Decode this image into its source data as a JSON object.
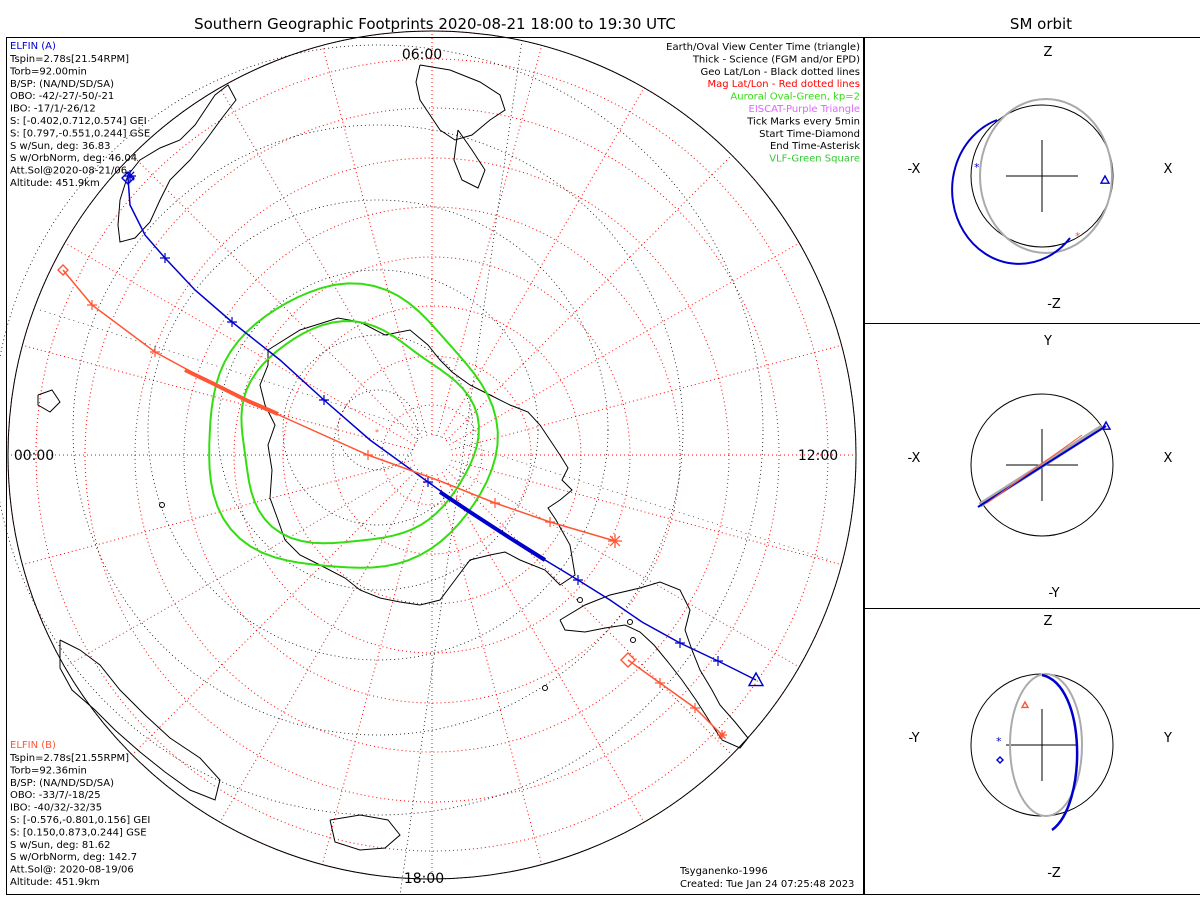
{
  "title": "Southern Geographic Footprints 2020-08-21 18:00 to 19:30 UTC",
  "side_title": "SM orbit",
  "colors": {
    "elfin_a": "#0000cc",
    "elfin_b": "#ff5533",
    "auroral_oval": "#33dd11",
    "eiscat": "#dd66ff",
    "vlf": "#33cc33",
    "geo_grid": "#000000",
    "mag_grid": "#ff0000",
    "orbit_gray": "#aaaaaa"
  },
  "mlt_labels": {
    "top": "06:00",
    "left": "00:00",
    "right": "12:00",
    "bottom": "18:00"
  },
  "legend": [
    {
      "text": "Earth/Oval View Center Time (triangle)",
      "color": "#000000"
    },
    {
      "text": "Thick - Science (FGM and/or EPD)",
      "color": "#000000"
    },
    {
      "text": "Geo Lat/Lon - Black dotted lines",
      "color": "#000000"
    },
    {
      "text": "Mag Lat/Lon - Red dotted lines",
      "color": "#ff0000"
    },
    {
      "text": "Auroral Oval-Green, kp=2",
      "color": "#33dd11"
    },
    {
      "text": "EISCAT-Purple Triangle",
      "color": "#dd66ff"
    },
    {
      "text": "Tick Marks every 5min",
      "color": "#000000"
    },
    {
      "text": "Start Time-Diamond",
      "color": "#000000"
    },
    {
      "text": "End Time-Asterisk",
      "color": "#000000"
    },
    {
      "text": "VLF-Green Square",
      "color": "#33cc33"
    }
  ],
  "elfin_a_info": {
    "name": "ELFIN (A)",
    "lines": [
      "Tspin=2.78s[21.54RPM]",
      "Torb=92.00min",
      "B/SP: (NA/ND/SD/SA)",
      "OBO: -42/-27/-50/-21",
      "IBO: -17/1/-26/12",
      "S: [-0.402,0.712,0.574] GEI",
      "S: [0.797,-0.551,0.244] GSE",
      "S w/Sun, deg: 36.83",
      "S w/OrbNorm, deg: 46.04",
      "Att.Sol@2020-08-21/06",
      "Altitude: 451.9km"
    ]
  },
  "elfin_b_info": {
    "name": "ELFIN (B)",
    "lines": [
      "Tspin=2.78s[21.55RPM]",
      "Torb=92.36min",
      "B/SP: (NA/ND/SD/SA)",
      "OBO: -33/7/-18/25",
      "IBO: -40/32/-32/35",
      "S: [-0.576,-0.801,0.156] GEI",
      "S: [0.150,0.873,0.244] GSE",
      "S w/Sun, deg: 81.62",
      "S w/OrbNorm, deg: 142.7",
      "Att.Sol@: 2020-08-19/06",
      "Altitude: 451.9km"
    ]
  },
  "footer": {
    "model": "Tsyganenko-1996",
    "created": "Created: Tue Jan 24 07:25:48 2023"
  },
  "orbit_panels": [
    {
      "id": "xz",
      "up": "Z",
      "down": "-Z",
      "left": "-X",
      "right": "X"
    },
    {
      "id": "xy",
      "up": "Y",
      "down": "-Y",
      "left": "-X",
      "right": "X"
    },
    {
      "id": "yz",
      "up": "Z",
      "down": "-Z",
      "left": "-Y",
      "right": "Y"
    }
  ],
  "chart_data": {
    "type": "scatter",
    "title": "Southern Geographic Footprints 2020-08-21 18:00 to 19:30 UTC",
    "projection": "southern polar stereographic, magnetic local time orientation",
    "series": [
      {
        "name": "ELFIN (A)",
        "color": "#0000cc",
        "tick_interval_min": 5,
        "start_marker": "diamond",
        "end_marker": "asterisk",
        "view_center_marker": "triangle"
      },
      {
        "name": "ELFIN (B)",
        "color": "#ff5533",
        "tick_interval_min": 5,
        "start_marker": "diamond",
        "end_marker": "asterisk"
      }
    ],
    "auroral_oval_kp": 2,
    "time_range_utc": [
      "2020-08-21 18:00",
      "2020-08-21 19:30"
    ],
    "grid": true
  }
}
